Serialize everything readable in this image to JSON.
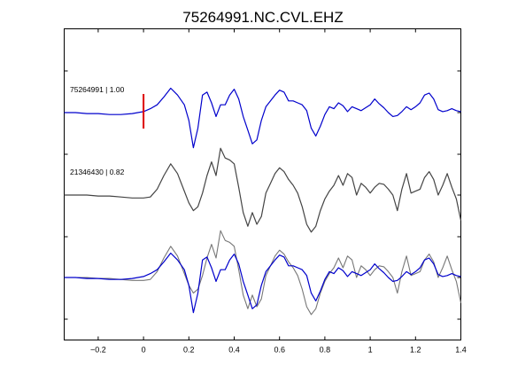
{
  "chart_data": {
    "type": "line",
    "title": "75264991.NC.CVL.EHZ",
    "xlabel": "",
    "ylabel": "",
    "xlim": [
      -0.35,
      1.4
    ],
    "xticks": [
      -0.2,
      0,
      0.2,
      0.4,
      0.6,
      0.8,
      1,
      1.2,
      1.4
    ],
    "xtick_labels": [
      "−0.2",
      "0",
      "0.2",
      "0.4",
      "0.6",
      "0.8",
      "1",
      "1.2",
      "1.4"
    ],
    "grid": false,
    "pick_time": 0,
    "colors": {
      "primary": "#0000cc",
      "secondary": "#444444",
      "overlay_secondary": "#777777",
      "pick": "#dd0000",
      "axes": "#000000"
    },
    "traces": [
      {
        "label": "75264991 | 1.00",
        "correlation": 1.0,
        "baseline": 1,
        "color": "#0000cc"
      },
      {
        "label": "21346430 | 0.82",
        "correlation": 0.82,
        "baseline": 0,
        "color": "#444444"
      }
    ],
    "series": [
      {
        "x": [
          -0.35,
          -0.3,
          -0.25,
          -0.2,
          -0.15,
          -0.1,
          -0.05,
          0,
          0.03,
          0.06,
          0.09,
          0.12,
          0.15,
          0.18,
          0.2,
          0.22,
          0.24,
          0.26,
          0.28,
          0.3,
          0.32,
          0.34,
          0.36,
          0.38,
          0.4,
          0.42,
          0.44,
          0.46,
          0.48,
          0.5,
          0.52,
          0.54,
          0.56,
          0.58,
          0.6,
          0.62,
          0.64,
          0.66,
          0.68,
          0.7,
          0.72,
          0.74,
          0.76,
          0.78,
          0.8,
          0.82,
          0.84,
          0.86,
          0.88,
          0.9,
          0.92,
          0.94,
          0.96,
          0.98,
          1,
          1.02,
          1.04,
          1.06,
          1.08,
          1.1,
          1.12,
          1.14,
          1.16,
          1.18,
          1.2,
          1.22,
          1.24,
          1.26,
          1.28,
          1.3,
          1.32,
          1.34,
          1.36,
          1.38,
          1.4
        ],
        "y": [
          0,
          0,
          -0.05,
          -0.05,
          -0.1,
          -0.1,
          -0.05,
          0.05,
          0.2,
          0.4,
          0.8,
          1.25,
          0.9,
          0.4,
          -0.4,
          -1.8,
          -0.8,
          0.9,
          1.05,
          0.5,
          -0.2,
          0.4,
          0.4,
          0.9,
          1.2,
          0.7,
          -0.2,
          -0.9,
          -1.6,
          -1.4,
          -0.4,
          0.3,
          0.6,
          0.9,
          1.15,
          1.05,
          0.6,
          0.6,
          0.5,
          0.4,
          0.1,
          -0.8,
          -1.2,
          -0.7,
          -0.1,
          0.3,
          0.2,
          0.5,
          0.35,
          0.05,
          0.3,
          0.2,
          0.1,
          0.25,
          0.4,
          0.7,
          0.45,
          0.25,
          0.0,
          -0.2,
          -0.15,
          0.05,
          0.3,
          0.15,
          0.3,
          0.5,
          0.9,
          1.0,
          0.7,
          0.15,
          0.05,
          0.1,
          0.2,
          0.1,
          0.05
        ]
      },
      {
        "x": [
          -0.35,
          -0.3,
          -0.25,
          -0.2,
          -0.15,
          -0.1,
          -0.05,
          0,
          0.03,
          0.06,
          0.09,
          0.12,
          0.15,
          0.18,
          0.2,
          0.22,
          0.24,
          0.26,
          0.28,
          0.3,
          0.32,
          0.34,
          0.36,
          0.38,
          0.4,
          0.42,
          0.44,
          0.46,
          0.48,
          0.5,
          0.52,
          0.54,
          0.56,
          0.58,
          0.6,
          0.62,
          0.64,
          0.66,
          0.68,
          0.7,
          0.72,
          0.74,
          0.76,
          0.78,
          0.8,
          0.82,
          0.84,
          0.86,
          0.88,
          0.9,
          0.92,
          0.94,
          0.96,
          0.98,
          1,
          1.02,
          1.04,
          1.06,
          1.08,
          1.1,
          1.12,
          1.14,
          1.16,
          1.18,
          1.2,
          1.22,
          1.24,
          1.26,
          1.28,
          1.3,
          1.32,
          1.34,
          1.36,
          1.38,
          1.4
        ],
        "y": [
          0,
          0,
          0,
          -0.05,
          -0.05,
          -0.1,
          -0.15,
          -0.15,
          -0.1,
          0.3,
          1.0,
          1.6,
          1.1,
          0.2,
          -0.4,
          -0.8,
          -0.6,
          0.1,
          1.0,
          1.7,
          1.0,
          2.4,
          1.9,
          1.8,
          1.6,
          0.4,
          -0.9,
          -1.6,
          -0.9,
          -1.5,
          -1.1,
          0.1,
          0.6,
          1.1,
          1.4,
          1.2,
          0.8,
          0.5,
          0.1,
          -0.6,
          -1.5,
          -1.9,
          -1.6,
          -0.8,
          -0.2,
          0.2,
          0.5,
          1.0,
          0.5,
          1.1,
          0.9,
          0.0,
          0.6,
          0.4,
          0.1,
          0.4,
          0.6,
          0.55,
          0.3,
          0.0,
          -0.8,
          0.3,
          1.1,
          0.1,
          0.2,
          0.3,
          0.9,
          1.2,
          0.8,
          0.0,
          0.5,
          1.1,
          0.4,
          -0.2,
          -1.3
        ]
      }
    ]
  }
}
